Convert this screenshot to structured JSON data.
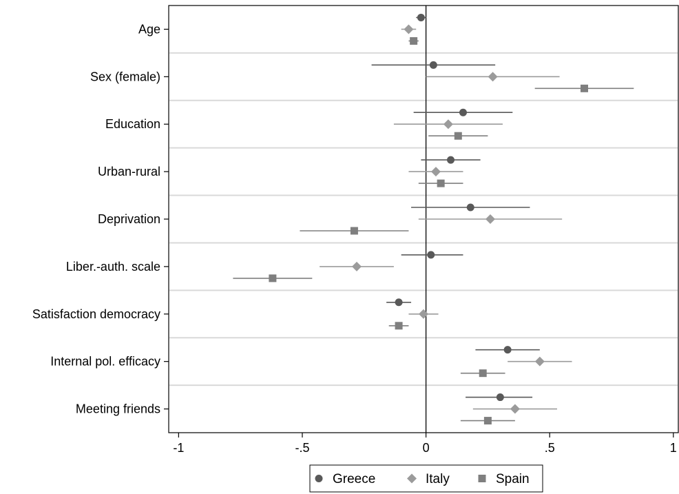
{
  "chart_data": {
    "type": "scatter",
    "subtype": "coefficient-plot-with-confidence-intervals",
    "orientation": "horizontal",
    "title": "",
    "xlabel": "",
    "ylabel": "",
    "xlim": [
      -1.04,
      1.02
    ],
    "xticks": [
      -1,
      -0.5,
      0,
      0.5,
      1
    ],
    "xtick_labels": [
      "-1",
      "-.5",
      "0",
      ".5",
      "1"
    ],
    "reference_line_x": 0,
    "grid": "horizontal separators between variables",
    "legend_position": "bottom",
    "categories": [
      "Age",
      "Sex (female)",
      "Education",
      "Urban-rural",
      "Deprivation",
      "Liber.-auth. scale",
      "Satisfaction democracy",
      "Internal pol. efficacy",
      "Meeting friends"
    ],
    "series": [
      {
        "name": "Greece",
        "marker": "circle",
        "color": "#595959",
        "estimates": [
          -0.02,
          0.03,
          0.15,
          0.1,
          0.18,
          0.02,
          -0.11,
          0.33,
          0.3
        ],
        "ci_low": [
          -0.04,
          -0.22,
          -0.05,
          -0.02,
          -0.06,
          -0.1,
          -0.16,
          0.2,
          0.16
        ],
        "ci_high": [
          0.0,
          0.28,
          0.35,
          0.22,
          0.42,
          0.15,
          -0.06,
          0.46,
          0.43
        ]
      },
      {
        "name": "Italy",
        "marker": "diamond",
        "color": "#9b9b9b",
        "estimates": [
          -0.07,
          0.27,
          0.09,
          0.04,
          0.26,
          -0.28,
          -0.01,
          0.46,
          0.36
        ],
        "ci_low": [
          -0.1,
          0.0,
          -0.13,
          -0.07,
          -0.03,
          -0.43,
          -0.07,
          0.33,
          0.19
        ],
        "ci_high": [
          -0.04,
          0.54,
          0.31,
          0.15,
          0.55,
          -0.13,
          0.05,
          0.59,
          0.53
        ]
      },
      {
        "name": "Spain",
        "marker": "square",
        "color": "#7f7f7f",
        "estimates": [
          -0.05,
          0.64,
          0.13,
          0.06,
          -0.29,
          -0.62,
          -0.11,
          0.23,
          0.25
        ],
        "ci_low": [
          -0.07,
          0.44,
          0.01,
          -0.03,
          -0.51,
          -0.78,
          -0.15,
          0.14,
          0.14
        ],
        "ci_high": [
          -0.03,
          0.84,
          0.25,
          0.15,
          -0.07,
          -0.46,
          -0.07,
          0.32,
          0.36
        ]
      }
    ]
  }
}
